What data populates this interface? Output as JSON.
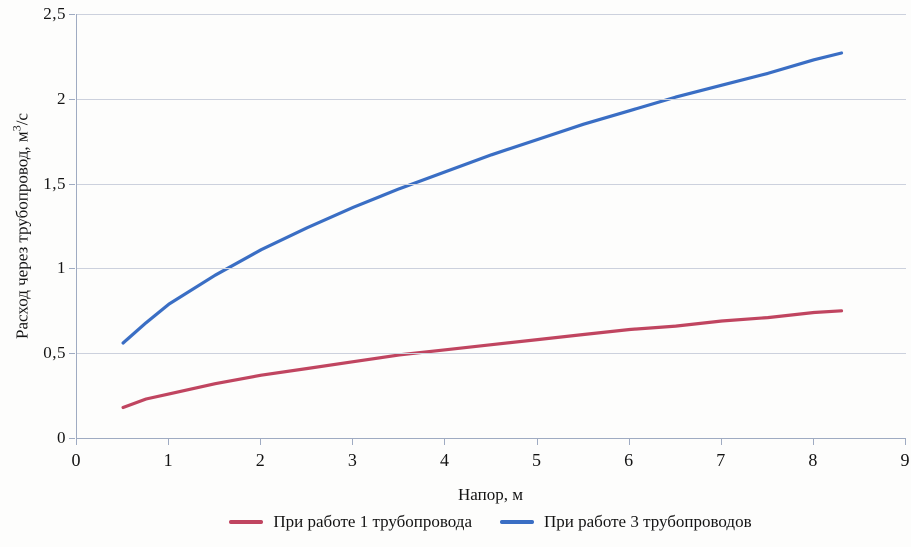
{
  "chart_data": {
    "type": "line",
    "title": "",
    "xlabel": "Напор, м",
    "ylabel": "Расход через трубопровод, м3/с",
    "ylabel_main": "Расход через трубопровод, м",
    "ylabel_sup": "3",
    "ylabel_unit": "/с",
    "xlim": [
      0,
      9
    ],
    "ylim": [
      0,
      2.5
    ],
    "xticks": {
      "values": [
        0,
        1,
        2,
        3,
        4,
        5,
        6,
        7,
        8,
        9
      ],
      "labels": [
        "0",
        "1",
        "2",
        "3",
        "4",
        "5",
        "6",
        "7",
        "8",
        "9"
      ]
    },
    "yticks": {
      "values": [
        0,
        0.5,
        1,
        1.5,
        2,
        2.5
      ],
      "labels": [
        "0",
        "0,5",
        "1",
        "1,5",
        "2",
        "2,5"
      ]
    },
    "grid": "horizontal-only",
    "legend_position": "bottom-center",
    "series": [
      {
        "name": "При работе 1 трубопровода",
        "color": "#c04560",
        "x": [
          0.5,
          0.75,
          1,
          1.5,
          2,
          2.5,
          3,
          3.5,
          4,
          4.5,
          5,
          5.5,
          6,
          6.5,
          7,
          7.5,
          8,
          8.3
        ],
        "y": [
          0.18,
          0.23,
          0.26,
          0.32,
          0.37,
          0.41,
          0.45,
          0.49,
          0.52,
          0.55,
          0.58,
          0.61,
          0.64,
          0.66,
          0.69,
          0.71,
          0.74,
          0.75
        ]
      },
      {
        "name": "При работе 3 трубопроводов",
        "color": "#3a6ec4",
        "x": [
          0.5,
          0.75,
          1,
          1.5,
          2,
          2.5,
          3,
          3.5,
          4,
          4.5,
          5,
          5.5,
          6,
          6.5,
          7,
          7.5,
          8,
          8.3
        ],
        "y": [
          0.56,
          0.68,
          0.79,
          0.96,
          1.11,
          1.24,
          1.36,
          1.47,
          1.57,
          1.67,
          1.76,
          1.85,
          1.93,
          2.01,
          2.08,
          2.15,
          2.23,
          2.27
        ]
      }
    ]
  },
  "colors": {
    "axis": "#9fabc2",
    "grid": "#ccd1dd",
    "text": "#141414",
    "background": "#fdfdfc"
  }
}
